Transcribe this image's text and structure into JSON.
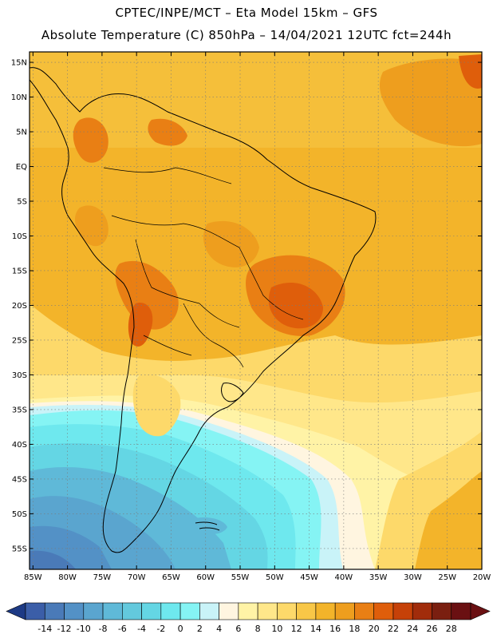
{
  "header": {
    "line1": "CPTEC/INPE/MCT –  Eta Model 15km – GFS",
    "line2": "Absolute Temperature (C) 850hPa – 14/04/2021 12UTC fct=244h"
  },
  "map": {
    "lat_labels": [
      "15N",
      "10N",
      "5N",
      "EQ",
      "5S",
      "10S",
      "15S",
      "20S",
      "25S",
      "30S",
      "35S",
      "40S",
      "45S",
      "50S",
      "55S"
    ],
    "lat_values": [
      15,
      10,
      5,
      0,
      -5,
      -10,
      -15,
      -20,
      -25,
      -30,
      -35,
      -40,
      -45,
      -50,
      -55
    ],
    "lon_labels": [
      "85W",
      "80W",
      "75W",
      "70W",
      "65W",
      "60W",
      "55W",
      "50W",
      "45W",
      "40W",
      "35W",
      "30W",
      "25W",
      "20W"
    ],
    "lon_values": [
      -85,
      -80,
      -75,
      -70,
      -65,
      -60,
      -55,
      -50,
      -45,
      -40,
      -35,
      -30,
      -25,
      -20
    ],
    "extent": {
      "lon_min": -85.5,
      "lon_max": -20,
      "lat_min": -58,
      "lat_max": 16.5
    }
  },
  "colorbar": {
    "labels": [
      "-14",
      "-12",
      "-10",
      "-8",
      "-6",
      "-4",
      "-2",
      "0",
      "2",
      "4",
      "6",
      "8",
      "10",
      "12",
      "14",
      "16",
      "18",
      "20",
      "22",
      "24",
      "26",
      "28"
    ],
    "colors": [
      "#3b5ea8",
      "#4a7ab8",
      "#5391c6",
      "#5aa5cf",
      "#5fb9d8",
      "#63c9dd",
      "#64d6e4",
      "#6ee8ee",
      "#85f4f4",
      "#c9f3f8",
      "#fff5e0",
      "#fff3a6",
      "#ffe78a",
      "#fdd96a",
      "#f8c747",
      "#f3b42a",
      "#ee9e1e",
      "#e97f14",
      "#df5e0b",
      "#c64108",
      "#a12c0b",
      "#7a1f10",
      "#6a1012"
    ],
    "end_left": "#1d3a85",
    "end_right": "#6a1012"
  }
}
